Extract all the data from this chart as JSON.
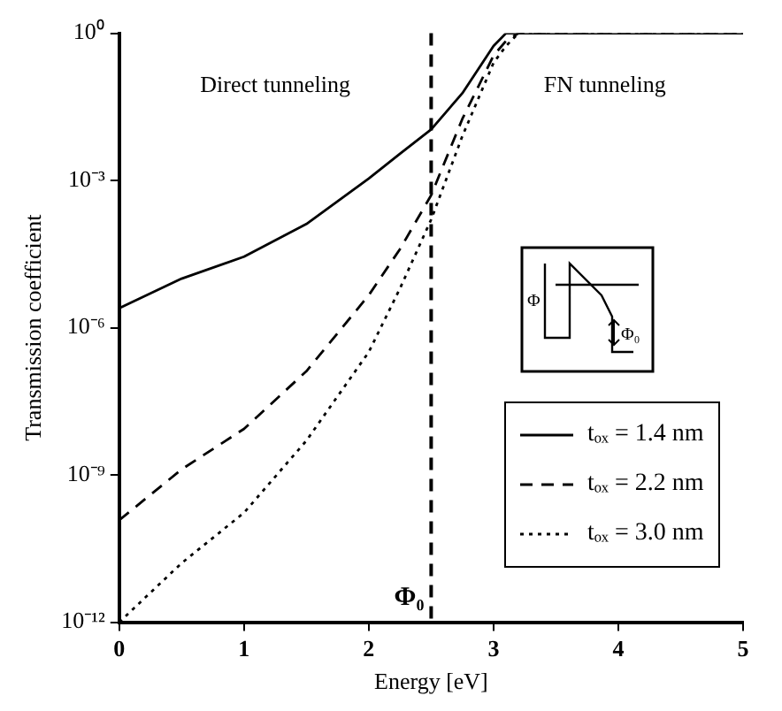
{
  "chart_data": {
    "type": "line",
    "xlabel": "Energy [eV]",
    "ylabel": "Transmission coefficient",
    "log": "y",
    "grid": false,
    "legend": "bottom right",
    "marker": "none",
    "xlim": [
      0,
      5
    ],
    "xticks": [
      0,
      1,
      2,
      3,
      4,
      5
    ],
    "ylim": [
      1e-12,
      1
    ],
    "yticks": [
      {
        "value": 1e-12,
        "label": "10⁻¹²"
      },
      {
        "value": 1e-09,
        "label": "10⁻⁹"
      },
      {
        "value": 1e-06,
        "label": "10⁻⁶"
      },
      {
        "value": 0.001,
        "label": "10⁻³"
      },
      {
        "value": 1,
        "label": "10⁰"
      }
    ],
    "x": [
      0,
      0.5,
      1,
      1.5,
      2,
      2.25,
      2.5,
      2.75,
      3,
      3.1,
      3.2,
      4,
      5
    ],
    "series": [
      {
        "name": "tₒₓ = 1.4 nm",
        "color": "#000000",
        "line_style": "solid",
        "values": [
          2.5e-06,
          1e-05,
          2.8e-05,
          0.00013,
          0.0011,
          0.0035,
          0.011,
          0.06,
          0.55,
          1,
          1,
          1,
          1
        ]
      },
      {
        "name": "tₒₓ = 2.2 nm",
        "color": "#000000",
        "line_style": "dashed",
        "values": [
          1.2e-10,
          1.3e-09,
          8.7e-09,
          1.3e-07,
          4.6e-06,
          4e-05,
          0.0005,
          0.018,
          0.35,
          0.7,
          1,
          1,
          1
        ]
      },
      {
        "name": "tₒₓ = 3.0 nm",
        "color": "#000000",
        "line_style": "dotted",
        "values": [
          1e-12,
          1.6e-11,
          1.7e-10,
          5e-09,
          3.2e-07,
          6.3e-06,
          0.00016,
          0.008,
          0.25,
          0.55,
          1,
          1,
          1
        ]
      }
    ],
    "ref_lines": [
      {
        "axis": "x",
        "value": 2.5,
        "label": "Φ₀",
        "color": "#000000",
        "line_style": "dashed"
      }
    ],
    "annotations": [
      "Direct tunneling",
      "FN tunneling",
      "Φ",
      "Φ₀"
    ]
  }
}
